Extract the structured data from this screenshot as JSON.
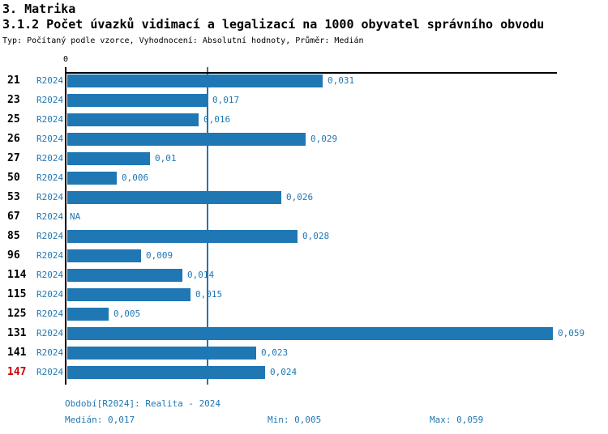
{
  "header": {
    "title": "3. Matrika",
    "subtitle": "3.1.2 Počet úvazků vidimací a legalizací na 1000 obyvatel správního obvodu",
    "meta": "Typ: Počítaný podle vzorce, Vyhodnocení: Absolutní hodnoty, Průměr: Medián"
  },
  "chart_data": {
    "type": "bar",
    "orientation": "horizontal",
    "title": "3.1.2 Počet úvazků vidimací a legalizací na 1000 obyvatel správního obvodu",
    "axis_zero_label": "0",
    "xlim": [
      0,
      0.0595
    ],
    "grid": false,
    "median_value": 0.017,
    "min_value": 0.005,
    "max_value": 0.059,
    "series_name": "R2024",
    "rows": [
      {
        "id": "21",
        "period": "R2024",
        "value": 0.031,
        "label": "0,031",
        "highlight": false
      },
      {
        "id": "23",
        "period": "R2024",
        "value": 0.017,
        "label": "0,017",
        "highlight": false
      },
      {
        "id": "25",
        "period": "R2024",
        "value": 0.016,
        "label": "0,016",
        "highlight": false
      },
      {
        "id": "26",
        "period": "R2024",
        "value": 0.029,
        "label": "0,029",
        "highlight": false
      },
      {
        "id": "27",
        "period": "R2024",
        "value": 0.01,
        "label": "0,01",
        "highlight": false
      },
      {
        "id": "50",
        "period": "R2024",
        "value": 0.006,
        "label": "0,006",
        "highlight": false
      },
      {
        "id": "53",
        "period": "R2024",
        "value": 0.026,
        "label": "0,026",
        "highlight": false
      },
      {
        "id": "67",
        "period": "R2024",
        "value": null,
        "label": "NA",
        "highlight": false
      },
      {
        "id": "85",
        "period": "R2024",
        "value": 0.028,
        "label": "0,028",
        "highlight": false
      },
      {
        "id": "96",
        "period": "R2024",
        "value": 0.009,
        "label": "0,009",
        "highlight": false
      },
      {
        "id": "114",
        "period": "R2024",
        "value": 0.014,
        "label": "0,014",
        "highlight": false
      },
      {
        "id": "115",
        "period": "R2024",
        "value": 0.015,
        "label": "0,015",
        "highlight": false
      },
      {
        "id": "125",
        "period": "R2024",
        "value": 0.005,
        "label": "0,005",
        "highlight": false
      },
      {
        "id": "131",
        "period": "R2024",
        "value": 0.059,
        "label": "0,059",
        "highlight": false
      },
      {
        "id": "141",
        "period": "R2024",
        "value": 0.023,
        "label": "0,023",
        "highlight": false
      },
      {
        "id": "147",
        "period": "R2024",
        "value": 0.024,
        "label": "0,024",
        "highlight": true
      }
    ],
    "colors": {
      "bar": "#1f77b4",
      "value_text": "#1f77b4",
      "period_text": "#1f77b4",
      "median_line": "#1f77b4",
      "highlight_text": "#cc0000",
      "axis": "#000000"
    }
  },
  "footer": {
    "period_label": "Období[R2024]: Realita - 2024",
    "median_label": "Medián: 0,017",
    "min_label": "Min: 0,005",
    "max_label": "Max: 0,059"
  }
}
